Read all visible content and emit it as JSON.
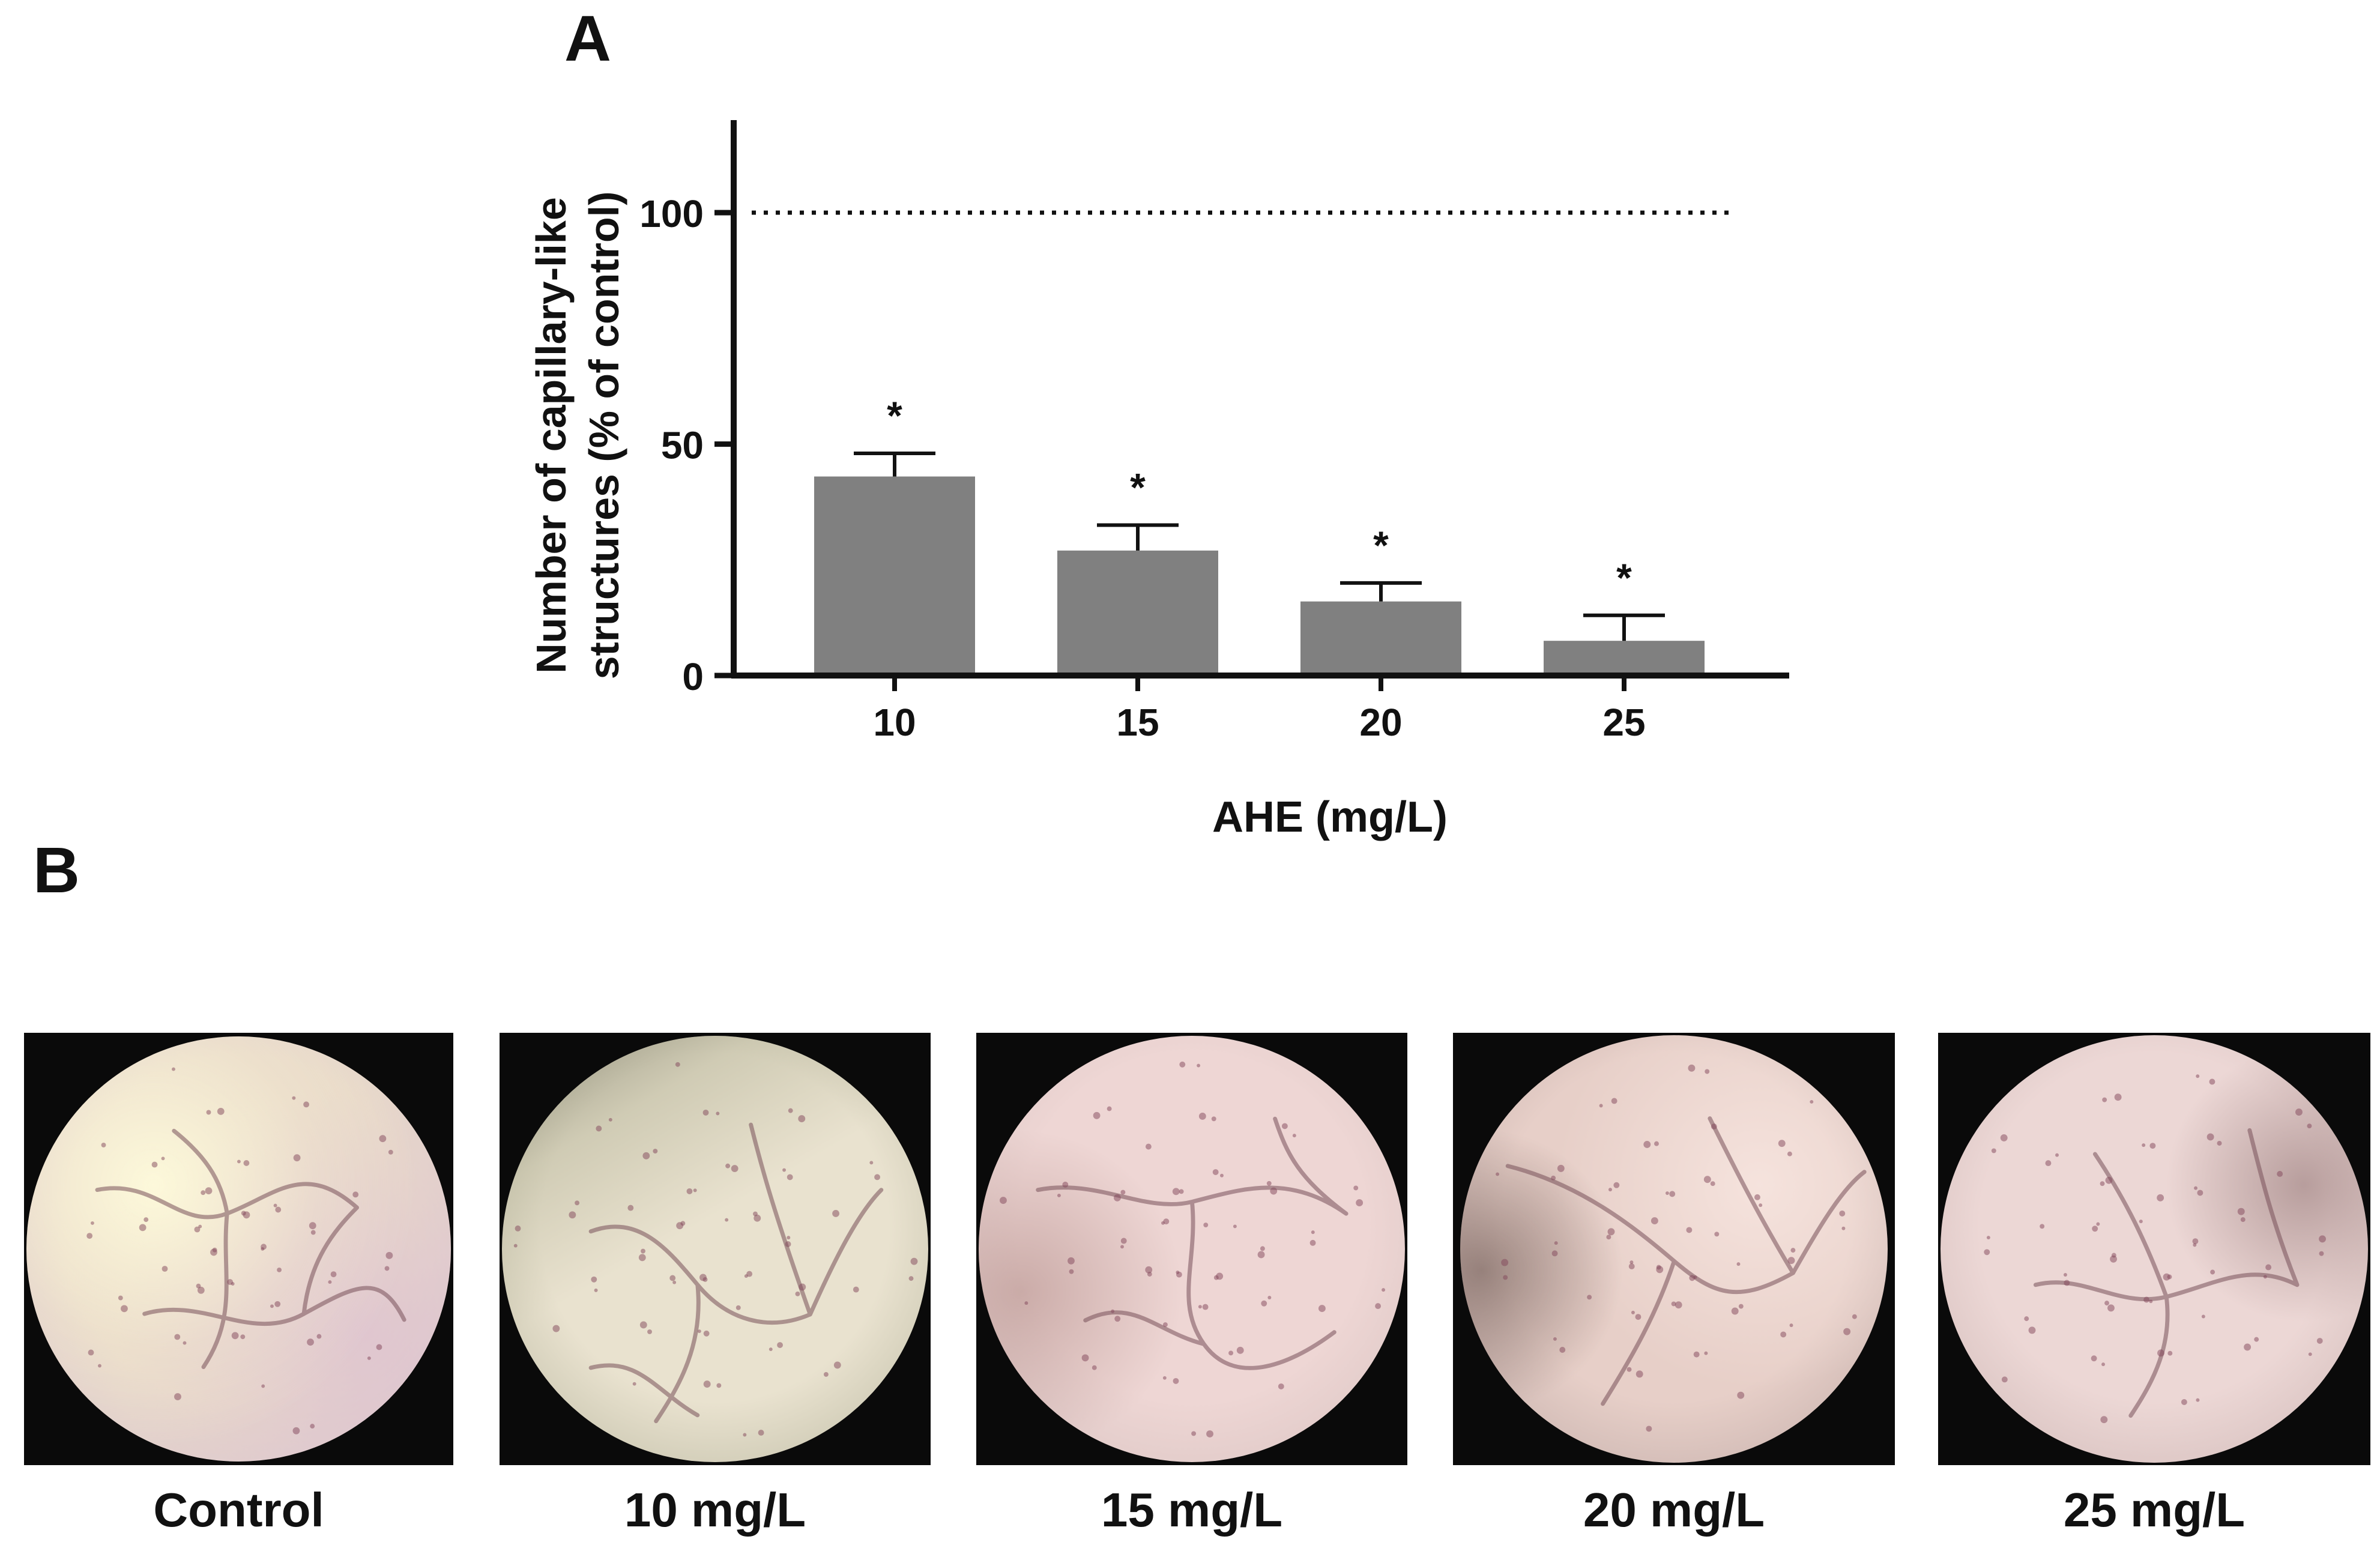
{
  "panel_a_letter": "A",
  "panel_b_letter": "B",
  "chart_data": {
    "type": "bar",
    "categories": [
      "10",
      "15",
      "20",
      "25"
    ],
    "values": [
      43,
      27,
      16,
      7.5
    ],
    "errors": [
      5,
      5.5,
      4,
      5.5
    ],
    "significance": [
      "*",
      "*",
      "*",
      "*"
    ],
    "title": "",
    "xlabel": "AHE (mg/L)",
    "ylabel_lines": [
      "Number of capillary-like",
      "structures (% of control)"
    ],
    "ylim": [
      0,
      120
    ],
    "yticks": [
      0,
      50,
      100
    ],
    "reference_line": {
      "y": 100,
      "style": "dotted"
    },
    "bar_color": "#808080",
    "axis_color": "#111111",
    "grid": false,
    "legend": "none"
  },
  "micrographs": [
    {
      "label": "Control",
      "tint": "#e8d9c9",
      "edge": "#d9c4d0"
    },
    {
      "label": "10 mg/L",
      "tint": "#e9e2cf",
      "edge": "#b9b7a0"
    },
    {
      "label": "15 mg/L",
      "tint": "#eed6d4",
      "edge": "#d7c2c0"
    },
    {
      "label": "20 mg/L",
      "tint": "#e7cfc8",
      "edge": "#bfaaa6"
    },
    {
      "label": "25 mg/L",
      "tint": "#ecd7d5",
      "edge": "#cdb6b4"
    }
  ]
}
